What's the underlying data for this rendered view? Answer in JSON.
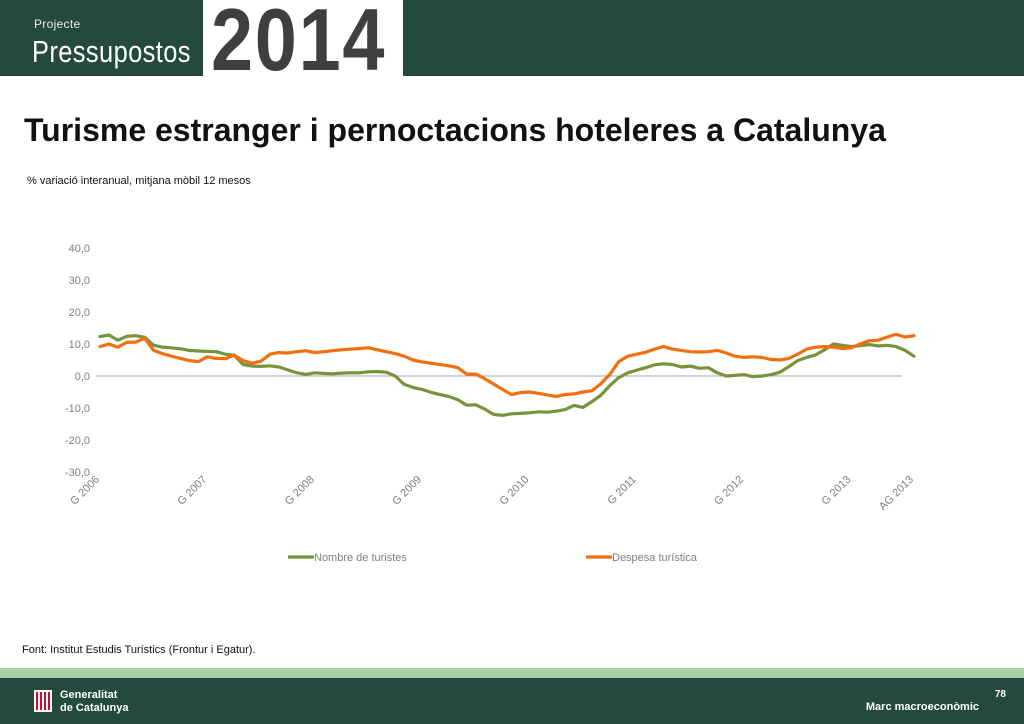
{
  "header": {
    "supertitle": "Projecte",
    "brand": "Pressupostos",
    "year": "2014"
  },
  "title": "Turisme estranger i pernoctacions hoteleres a Catalunya",
  "subtitle": "% variació interanual, mitjana mòbil 12 mesos",
  "source": "Font: Institut Estudis Turístics (Frontur i Egatur).",
  "footer": {
    "org_line1": "Generalitat",
    "org_line2": "de Catalunya",
    "page": "78",
    "section": "Marc macroeconòmic"
  },
  "colors": {
    "green": "#77933c",
    "orange": "#f26f0f",
    "header_bg": "#234a3a",
    "strip": "#a9cfa6"
  },
  "chart_data": {
    "type": "line",
    "ylim": [
      -30,
      40
    ],
    "yticks": [
      "40,0",
      "30,0",
      "20,0",
      "10,0",
      "0,0",
      "-10,0",
      "-20,0",
      "-30,0"
    ],
    "ytick_values": [
      40,
      30,
      20,
      10,
      0,
      -10,
      -20,
      -30
    ],
    "xtick_labels": [
      "G 2006",
      "G 2007",
      "G 2008",
      "G 2009",
      "G 2010",
      "G 2011",
      "G 2012",
      "G 2013",
      "AG 2013"
    ],
    "xtick_index": [
      0,
      12,
      24,
      36,
      48,
      60,
      72,
      84,
      91
    ],
    "n_points": 92,
    "legend_position": "bottom",
    "series": [
      {
        "name": "Nombre de turistes",
        "color": "#77933c",
        "values": [
          12.3,
          12.8,
          11.2,
          12.4,
          12.6,
          12.1,
          9.6,
          9.0,
          8.8,
          8.5,
          8.0,
          7.8,
          7.7,
          7.6,
          6.8,
          6.5,
          3.6,
          3.1,
          3.0,
          3.2,
          2.8,
          1.9,
          1.0,
          0.5,
          1.0,
          0.8,
          0.7,
          0.9,
          1.0,
          1.0,
          1.3,
          1.4,
          1.2,
          0.0,
          -2.6,
          -3.6,
          -4.2,
          -5.1,
          -5.8,
          -6.4,
          -7.4,
          -9.1,
          -9.0,
          -10.3,
          -12.0,
          -12.3,
          -11.8,
          -11.7,
          -11.5,
          -11.2,
          -11.3,
          -11.0,
          -10.5,
          -9.2,
          -9.8,
          -8.0,
          -6.0,
          -3.0,
          -0.5,
          1.0,
          1.8,
          2.6,
          3.5,
          3.8,
          3.6,
          2.8,
          3.1,
          2.4,
          2.6,
          1.0,
          0.0,
          0.2,
          0.4,
          -0.2,
          0.0,
          0.4,
          1.2,
          2.9,
          4.8,
          5.8,
          6.6,
          8.2,
          10.0,
          9.6,
          9.2,
          9.5,
          9.8,
          9.4,
          9.6,
          9.2,
          8.0,
          6.2
        ]
      },
      {
        "name": "Despesa turística",
        "color": "#f26f0f",
        "values": [
          9.2,
          10.0,
          9.0,
          10.5,
          10.6,
          11.8,
          8.0,
          7.0,
          6.2,
          5.5,
          4.8,
          4.5,
          6.0,
          5.5,
          5.4,
          6.5,
          4.8,
          4.0,
          4.6,
          6.8,
          7.3,
          7.2,
          7.6,
          7.9,
          7.3,
          7.6,
          7.9,
          8.2,
          8.4,
          8.6,
          8.8,
          8.2,
          7.6,
          7.0,
          6.2,
          5.0,
          4.4,
          4.0,
          3.6,
          3.2,
          2.6,
          0.6,
          0.6,
          -0.8,
          -2.5,
          -4.2,
          -5.8,
          -5.2,
          -5.0,
          -5.4,
          -5.9,
          -6.4,
          -5.8,
          -5.6,
          -5.0,
          -4.6,
          -2.4,
          0.5,
          4.5,
          6.2,
          6.8,
          7.4,
          8.4,
          9.2,
          8.4,
          8.0,
          7.6,
          7.5,
          7.6,
          8.0,
          7.2,
          6.2,
          5.8,
          6.0,
          5.8,
          5.2,
          5.0,
          5.5,
          6.8,
          8.4,
          9.0,
          9.2,
          9.0,
          8.6,
          8.8,
          10.0,
          11.0,
          11.2,
          12.2,
          13.0,
          12.2,
          12.6
        ]
      }
    ]
  }
}
